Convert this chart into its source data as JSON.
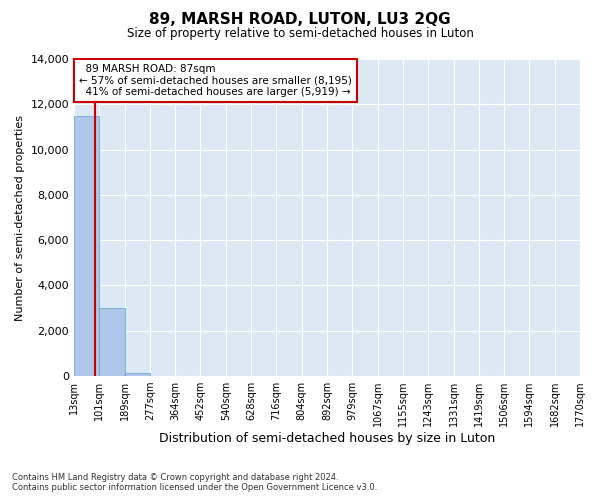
{
  "title": "89, MARSH ROAD, LUTON, LU3 2QG",
  "subtitle": "Size of property relative to semi-detached houses in Luton",
  "xlabel": "Distribution of semi-detached houses by size in Luton",
  "ylabel": "Number of semi-detached properties",
  "property_size": 87,
  "property_label": "89 MARSH ROAD: 87sqm",
  "pct_smaller": 57,
  "n_smaller": 8195,
  "pct_larger": 41,
  "n_larger": 5919,
  "bin_edges": [
    13,
    101,
    189,
    277,
    364,
    452,
    540,
    628,
    716,
    804,
    892,
    979,
    1067,
    1155,
    1243,
    1331,
    1419,
    1506,
    1594,
    1682,
    1770
  ],
  "bin_labels": [
    "13sqm",
    "101sqm",
    "189sqm",
    "277sqm",
    "364sqm",
    "452sqm",
    "540sqm",
    "628sqm",
    "716sqm",
    "804sqm",
    "892sqm",
    "979sqm",
    "1067sqm",
    "1155sqm",
    "1243sqm",
    "1331sqm",
    "1419sqm",
    "1506sqm",
    "1594sqm",
    "1682sqm",
    "1770sqm"
  ],
  "bar_heights": [
    11500,
    3000,
    150,
    0,
    0,
    0,
    0,
    0,
    0,
    0,
    0,
    0,
    0,
    0,
    0,
    0,
    0,
    0,
    0,
    0
  ],
  "bar_color": "#aec6e8",
  "bar_edge_color": "#5a9fd4",
  "red_line_color": "#cc0000",
  "annotation_box_edge": "#cc0000",
  "annotation_bg": "#ffffff",
  "ylim": [
    0,
    14000
  ],
  "yticks": [
    0,
    2000,
    4000,
    6000,
    8000,
    10000,
    12000,
    14000
  ],
  "grid_color": "#ffffff",
  "bg_color": "#dce9f5",
  "fig_bg": "#ffffff",
  "footer1": "Contains HM Land Registry data © Crown copyright and database right 2024.",
  "footer2": "Contains public sector information licensed under the Open Government Licence v3.0."
}
